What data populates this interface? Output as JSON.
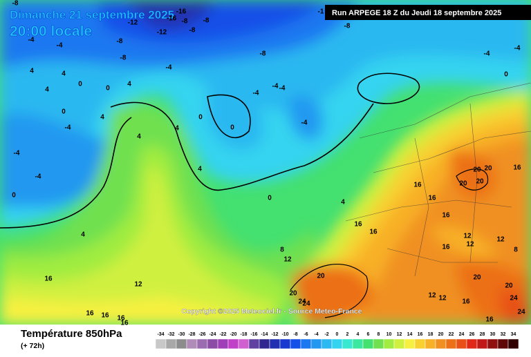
{
  "header": {
    "date": "Dimanche 21 septembre 2025",
    "time": "20:00 locale",
    "run": "Run ARPEGE 18 Z du Jeudi 18 septembre 2025"
  },
  "copyright": "Copyright ©2025 Meteociel.fr - Source Meteo-France",
  "legend": {
    "title": "Température 850hPa",
    "lead": "(+ 72h)",
    "scale": [
      -34,
      -32,
      -30,
      -28,
      -26,
      -24,
      -22,
      -20,
      -18,
      -16,
      -14,
      -12,
      -10,
      -8,
      -6,
      -4,
      -2,
      0,
      2,
      4,
      6,
      8,
      10,
      12,
      14,
      16,
      18,
      20,
      22,
      24,
      26,
      28,
      30,
      32,
      34
    ],
    "colors": [
      "#c8c8c8",
      "#a8a8a8",
      "#8c8c8c",
      "#b08cb8",
      "#9c6cb0",
      "#8a4ca4",
      "#a040b8",
      "#c040c8",
      "#d060d0",
      "#6040a0",
      "#302890",
      "#2030b0",
      "#1838d0",
      "#1450e8",
      "#1c78f0",
      "#2498f0",
      "#2cb8f0",
      "#34d4f0",
      "#38e8d0",
      "#3ce8a0",
      "#44e070",
      "#70e050",
      "#a0ec40",
      "#d0f040",
      "#f8f040",
      "#f8d030",
      "#f8b028",
      "#f09020",
      "#ec7018",
      "#e85018",
      "#e02818",
      "#c01818",
      "#901010",
      "#600808",
      "#300000"
    ]
  },
  "contour_labels": [
    -8,
    -12,
    -16,
    -16,
    -8,
    -12,
    -8,
    -8,
    -8,
    -8,
    -8,
    -8,
    -1,
    -4,
    -4,
    -4,
    -4,
    -4,
    4,
    4,
    4,
    4,
    0,
    0,
    0,
    -4,
    4,
    -4,
    -4,
    -4,
    0,
    0,
    -4,
    0,
    4,
    4,
    4,
    -4,
    -4,
    0,
    4,
    0,
    4,
    16,
    16,
    16,
    20,
    20,
    20,
    20,
    16,
    16,
    16,
    16,
    12,
    12,
    12,
    8,
    8,
    12,
    16,
    12,
    20,
    20,
    20,
    24,
    24,
    16,
    16,
    16,
    16,
    12,
    12,
    16,
    16,
    24,
    24,
    20
  ]
}
